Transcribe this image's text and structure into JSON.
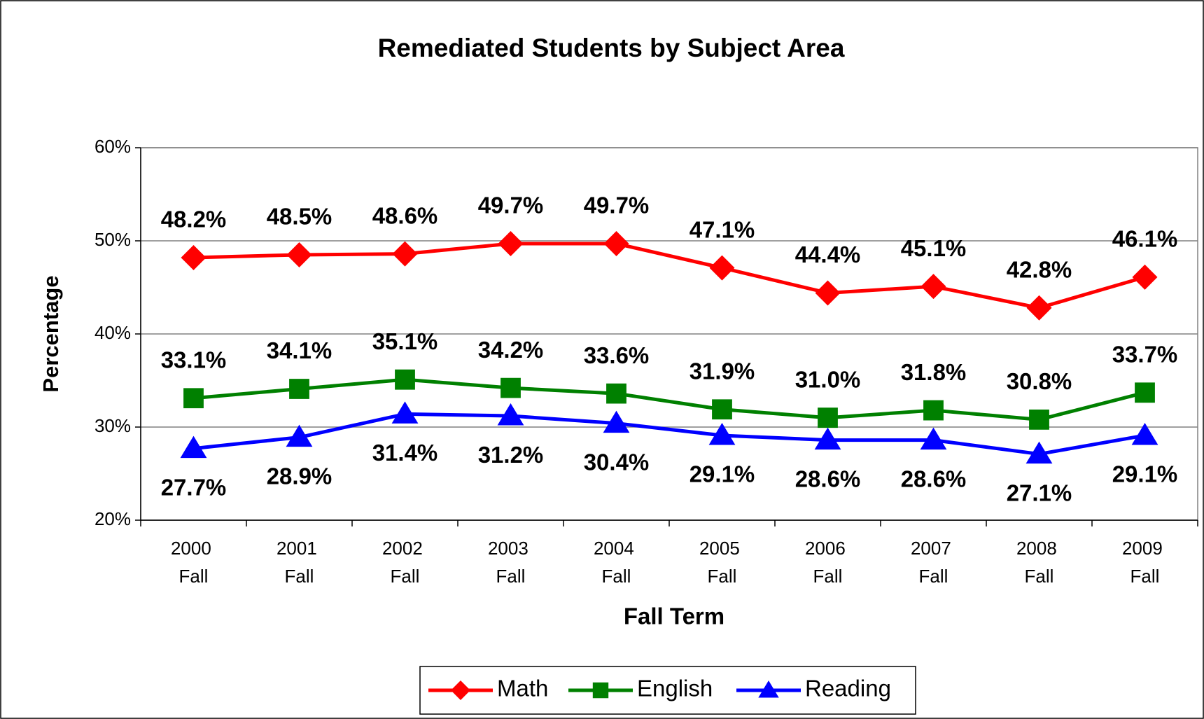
{
  "chart_data": {
    "type": "line",
    "title": "Remediated Students by Subject Area",
    "x_label": "Fall Term",
    "y_label": "Percentage",
    "categories": [
      "2000 Fall",
      "2001 Fall",
      "2002 Fall",
      "2003 Fall",
      "2004 Fall",
      "2005 Fall",
      "2006 Fall",
      "2007 Fall",
      "2008 Fall",
      "2009 Fall"
    ],
    "series": [
      {
        "name": "Math",
        "color": "#ff0000",
        "marker": "diamond",
        "values": [
          48.2,
          48.5,
          48.6,
          49.7,
          49.7,
          47.1,
          44.4,
          45.1,
          42.8,
          46.1
        ],
        "value_labels": [
          "48.2%",
          "48.5%",
          "48.6%",
          "49.7%",
          "49.7%",
          "47.1%",
          "44.4%",
          "45.1%",
          "42.8%",
          "46.1%"
        ]
      },
      {
        "name": "English",
        "color": "#008000",
        "marker": "square",
        "values": [
          33.1,
          34.1,
          35.1,
          34.2,
          33.6,
          31.9,
          31.0,
          31.8,
          30.8,
          33.7
        ],
        "value_labels": [
          "33.1%",
          "34.1%",
          "35.1%",
          "34.2%",
          "33.6%",
          "31.9%",
          "31.0%",
          "31.8%",
          "30.8%",
          "33.7%"
        ]
      },
      {
        "name": "Reading",
        "color": "#0000ff",
        "marker": "triangle",
        "values": [
          27.7,
          28.9,
          31.4,
          31.2,
          30.4,
          29.1,
          28.6,
          28.6,
          27.1,
          29.1
        ],
        "value_labels": [
          "27.7%",
          "28.9%",
          "31.4%",
          "31.2%",
          "30.4%",
          "29.1%",
          "28.6%",
          "28.6%",
          "27.1%",
          "29.1%"
        ]
      }
    ],
    "ylim": [
      20,
      60
    ],
    "yticks": [
      {
        "value": 20,
        "label": "20%"
      },
      {
        "value": 30,
        "label": "30%"
      },
      {
        "value": 40,
        "label": "40%"
      },
      {
        "value": 50,
        "label": "50%"
      },
      {
        "value": 60,
        "label": "60%"
      }
    ],
    "grid": true,
    "legend": "bottom"
  }
}
